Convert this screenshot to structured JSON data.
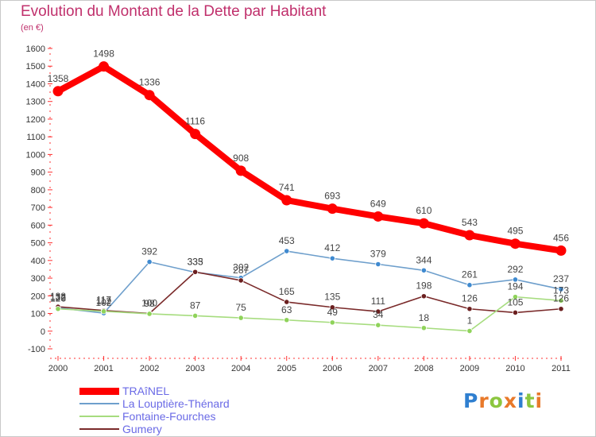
{
  "header": {
    "title": "Evolution du Montant de la Dette par Habitant",
    "unit": "(en €)"
  },
  "logo": {
    "text": "Proxiti",
    "letter_colors": [
      "#2f7fd0",
      "#e8792a",
      "#8cc63f",
      "#e8792a",
      "#2f7fd0",
      "#8cc63f",
      "#e8792a"
    ]
  },
  "chart_data": {
    "type": "line",
    "x": [
      "2000",
      "2001",
      "2002",
      "2003",
      "2004",
      "2005",
      "2006",
      "2007",
      "2008",
      "2009",
      "2010",
      "2011"
    ],
    "ylim": [
      -100,
      1600
    ],
    "yticks": [
      "-100",
      "0",
      "100",
      "200",
      "300",
      "400",
      "500",
      "600",
      "700",
      "800",
      "900",
      "1000",
      "1100",
      "1200",
      "1300",
      "1400",
      "1500",
      "1600"
    ],
    "grid": false,
    "legend_position": "bottom-left",
    "series": [
      {
        "name": "TRAîNEL",
        "color": "#ff0000",
        "values": [
          1358,
          1498,
          1336,
          1116,
          908,
          741,
          693,
          649,
          610,
          543,
          495,
          456
        ],
        "labels": [
          "1358",
          "1498",
          "1336",
          "1116",
          "908",
          "741",
          "693",
          "649",
          "610",
          "543",
          "495",
          "456"
        ]
      },
      {
        "name": "La Louptière-Thénard",
        "color": "#6e9fcc",
        "marker": "#3f8ad0",
        "values": [
          132,
          102,
          392,
          333,
          302,
          453,
          412,
          379,
          344,
          261,
          292,
          237
        ],
        "labels": [
          "132",
          "102",
          "392",
          "333",
          "302",
          "453",
          "412",
          "379",
          "344",
          "261",
          "292",
          "237"
        ]
      },
      {
        "name": "Fontaine-Fourches",
        "color": "#a6dc7e",
        "marker": "#8fd35a",
        "values": [
          126,
          112,
          98,
          87,
          75,
          63,
          49,
          34,
          18,
          1,
          194,
          173
        ],
        "labels": [
          "126",
          "112",
          "98",
          "87",
          "75",
          "63",
          "49",
          "34",
          "18",
          "1",
          "194",
          "173"
        ]
      },
      {
        "name": "Gumery",
        "color": "#7a2a2a",
        "marker": "#6b1f1f",
        "values": [
          138,
          117,
          100,
          335,
          287,
          165,
          135,
          111,
          198,
          126,
          105,
          126
        ],
        "labels": [
          "138",
          "117",
          "100",
          "335",
          "287",
          "165",
          "135",
          "111",
          "198",
          "126",
          "105",
          "126"
        ]
      }
    ]
  }
}
